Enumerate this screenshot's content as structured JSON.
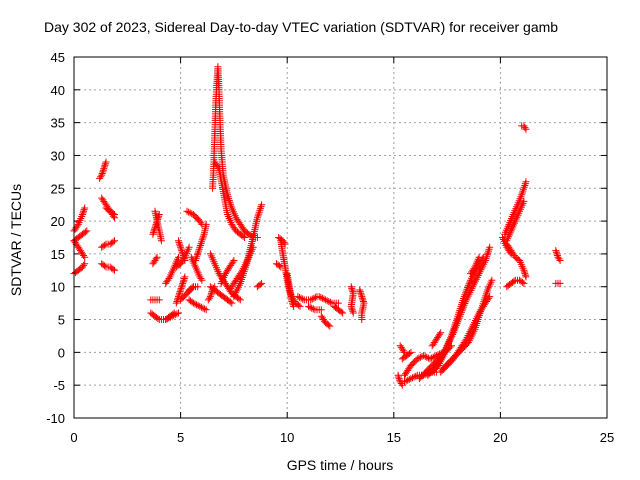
{
  "chart_data": {
    "type": "scatter",
    "title": "Day 302 of 2023, Sidereal Day-to-day VTEC variation (SDTVAR) for receiver gamb",
    "xlabel": "GPS time / hours",
    "ylabel": "SDTVAR / TECUs",
    "xlim": [
      0,
      25
    ],
    "ylim": [
      -10,
      45
    ],
    "xticks": [
      "0",
      "5",
      "10",
      "15",
      "20",
      "25"
    ],
    "yticks": [
      "-10",
      "-5",
      "0",
      "5",
      "10",
      "15",
      "20",
      "25",
      "30",
      "35",
      "40",
      "45"
    ],
    "grid": true,
    "marker": "+",
    "color": "#ff0000",
    "segments": [
      [
        [
          0.0,
          12.0
        ],
        [
          0.2,
          12.5
        ],
        [
          0.4,
          13.0
        ],
        [
          0.5,
          13.5
        ]
      ],
      [
        [
          0.0,
          17.0
        ],
        [
          0.1,
          16.5
        ],
        [
          0.2,
          16.0
        ],
        [
          0.3,
          15.5
        ],
        [
          0.4,
          15.0
        ],
        [
          0.5,
          14.5
        ]
      ],
      [
        [
          0.0,
          18.5
        ],
        [
          0.2,
          19.5
        ],
        [
          0.4,
          21.0
        ],
        [
          0.5,
          22.0
        ]
      ],
      [
        [
          0.0,
          17.0
        ],
        [
          0.2,
          17.5
        ],
        [
          0.4,
          18.0
        ],
        [
          0.6,
          18.5
        ]
      ],
      [
        [
          1.2,
          26.5
        ],
        [
          1.3,
          27.0
        ],
        [
          1.4,
          28.0
        ],
        [
          1.5,
          29.0
        ]
      ],
      [
        [
          1.3,
          23.5
        ],
        [
          1.5,
          22.5
        ],
        [
          1.7,
          21.5
        ],
        [
          1.9,
          20.5
        ]
      ],
      [
        [
          1.3,
          16.0
        ],
        [
          1.5,
          16.5
        ],
        [
          1.7,
          16.5
        ],
        [
          1.9,
          17.0
        ]
      ],
      [
        [
          1.3,
          13.5
        ],
        [
          1.5,
          13.0
        ],
        [
          1.7,
          13.0
        ],
        [
          1.9,
          12.5
        ]
      ],
      [
        [
          1.5,
          22.0
        ],
        [
          1.7,
          21.5
        ],
        [
          1.9,
          21.0
        ]
      ],
      [
        [
          3.7,
          18.0
        ],
        [
          3.8,
          19.0
        ],
        [
          3.9,
          20.0
        ],
        [
          4.0,
          21.0
        ]
      ],
      [
        [
          3.8,
          21.5
        ],
        [
          3.9,
          20.0
        ],
        [
          4.0,
          18.5
        ],
        [
          4.1,
          17.0
        ]
      ],
      [
        [
          3.6,
          8.0
        ],
        [
          3.8,
          8.0
        ],
        [
          4.0,
          8.0
        ]
      ],
      [
        [
          3.6,
          6.0
        ],
        [
          3.8,
          5.5
        ],
        [
          4.0,
          5.0
        ],
        [
          4.3,
          5.0
        ],
        [
          4.6,
          5.5
        ],
        [
          4.9,
          6.0
        ]
      ],
      [
        [
          3.7,
          13.5
        ],
        [
          3.8,
          14.0
        ],
        [
          3.9,
          14.5
        ]
      ],
      [
        [
          4.3,
          10.5
        ],
        [
          4.5,
          11.5
        ],
        [
          4.7,
          13.0
        ],
        [
          4.9,
          14.5
        ]
      ],
      [
        [
          4.3,
          5.0
        ],
        [
          4.5,
          5.5
        ],
        [
          4.7,
          6.0
        ]
      ],
      [
        [
          4.8,
          13.0
        ],
        [
          5.0,
          13.5
        ],
        [
          5.2,
          14.5
        ],
        [
          5.4,
          16.0
        ]
      ],
      [
        [
          4.9,
          17.0
        ],
        [
          5.0,
          16.0
        ],
        [
          5.1,
          15.0
        ],
        [
          5.2,
          14.0
        ]
      ],
      [
        [
          4.8,
          7.5
        ],
        [
          4.9,
          8.5
        ],
        [
          5.0,
          9.5
        ],
        [
          5.1,
          10.5
        ],
        [
          5.2,
          11.5
        ]
      ],
      [
        [
          5.0,
          8.0
        ],
        [
          5.3,
          9.0
        ],
        [
          5.6,
          10.0
        ]
      ],
      [
        [
          5.3,
          21.5
        ],
        [
          5.6,
          21.0
        ],
        [
          5.9,
          20.0
        ],
        [
          6.0,
          19.5
        ]
      ],
      [
        [
          5.5,
          14.5
        ],
        [
          5.7,
          13.0
        ],
        [
          5.9,
          11.5
        ],
        [
          6.0,
          11.0
        ]
      ],
      [
        [
          5.4,
          9.5
        ],
        [
          5.6,
          10.0
        ],
        [
          5.8,
          10.0
        ]
      ],
      [
        [
          5.4,
          8.0
        ],
        [
          5.6,
          7.5
        ],
        [
          5.9,
          7.0
        ],
        [
          6.2,
          6.5
        ]
      ],
      [
        [
          5.7,
          14.0
        ],
        [
          5.9,
          16.0
        ],
        [
          6.1,
          18.0
        ],
        [
          6.2,
          19.5
        ]
      ],
      [
        [
          6.3,
          8.0
        ],
        [
          6.4,
          8.5
        ],
        [
          6.5,
          9.5
        ],
        [
          6.6,
          10.0
        ]
      ],
      [
        [
          6.5,
          25.0
        ],
        [
          6.55,
          28.0
        ],
        [
          6.6,
          33.0
        ],
        [
          6.65,
          38.0
        ],
        [
          6.7,
          41.0
        ],
        [
          6.75,
          43.5
        ],
        [
          6.8,
          40.0
        ],
        [
          6.85,
          35.0
        ],
        [
          6.9,
          31.0
        ],
        [
          6.95,
          29.0
        ],
        [
          7.0,
          27.0
        ],
        [
          7.1,
          25.5
        ],
        [
          7.2,
          24.0
        ],
        [
          7.4,
          22.0
        ],
        [
          7.6,
          20.5
        ],
        [
          7.8,
          19.5
        ],
        [
          8.0,
          18.5
        ],
        [
          8.2,
          18.0
        ],
        [
          8.4,
          17.5
        ],
        [
          8.6,
          17.5
        ]
      ],
      [
        [
          6.6,
          29.0
        ],
        [
          6.8,
          28.0
        ],
        [
          7.0,
          24.5
        ],
        [
          7.2,
          21.0
        ],
        [
          7.4,
          19.5
        ],
        [
          7.6,
          18.5
        ],
        [
          7.8,
          18.0
        ],
        [
          8.0,
          17.5
        ]
      ],
      [
        [
          6.4,
          15.0
        ],
        [
          6.6,
          13.5
        ],
        [
          6.8,
          12.0
        ],
        [
          7.0,
          11.0
        ],
        [
          7.2,
          10.0
        ],
        [
          7.4,
          9.0
        ],
        [
          7.6,
          8.5
        ],
        [
          7.8,
          8.0
        ]
      ],
      [
        [
          6.4,
          10.0
        ],
        [
          6.6,
          9.5
        ],
        [
          6.8,
          9.0
        ],
        [
          7.0,
          8.5
        ],
        [
          7.2,
          8.0
        ],
        [
          7.4,
          7.5
        ]
      ],
      [
        [
          7.3,
          9.5
        ],
        [
          7.6,
          11.0
        ],
        [
          7.9,
          12.5
        ],
        [
          8.2,
          14.5
        ],
        [
          8.4,
          16.0
        ]
      ],
      [
        [
          7.5,
          8.5
        ],
        [
          7.8,
          10.5
        ],
        [
          8.1,
          13.5
        ],
        [
          8.4,
          17.5
        ],
        [
          8.6,
          20.5
        ],
        [
          8.8,
          22.5
        ]
      ],
      [
        [
          6.9,
          10.5
        ],
        [
          7.1,
          12.0
        ],
        [
          7.3,
          13.0
        ],
        [
          7.5,
          14.0
        ]
      ],
      [
        [
          8.6,
          10.0
        ],
        [
          8.8,
          10.5
        ]
      ],
      [
        [
          9.5,
          13.5
        ],
        [
          9.7,
          13.0
        ]
      ],
      [
        [
          9.7,
          17.0
        ],
        [
          9.8,
          15.0
        ],
        [
          9.9,
          13.0
        ],
        [
          10.0,
          11.0
        ],
        [
          10.1,
          9.5
        ],
        [
          10.2,
          8.5
        ],
        [
          10.4,
          7.5
        ],
        [
          10.6,
          7.0
        ]
      ],
      [
        [
          9.6,
          17.5
        ],
        [
          9.8,
          17.0
        ],
        [
          9.9,
          16.5
        ]
      ],
      [
        [
          10.0,
          12.0
        ],
        [
          10.1,
          10.0
        ],
        [
          10.2,
          8.0
        ],
        [
          10.3,
          7.0
        ]
      ],
      [
        [
          10.5,
          8.5
        ],
        [
          10.8,
          8.0
        ],
        [
          11.1,
          8.0
        ],
        [
          11.4,
          8.5
        ]
      ],
      [
        [
          11.0,
          7.0
        ],
        [
          11.3,
          6.5
        ],
        [
          11.6,
          6.5
        ]
      ],
      [
        [
          11.5,
          8.5
        ],
        [
          11.8,
          8.0
        ],
        [
          12.1,
          7.5
        ],
        [
          12.4,
          7.5
        ]
      ],
      [
        [
          11.6,
          5.5
        ],
        [
          11.8,
          4.5
        ],
        [
          12.0,
          4.0
        ]
      ],
      [
        [
          12.2,
          7.0
        ],
        [
          12.4,
          6.5
        ],
        [
          12.6,
          6.0
        ]
      ],
      [
        [
          13.0,
          10.0
        ],
        [
          13.1,
          9.0
        ],
        [
          13.0,
          7.0
        ],
        [
          13.1,
          6.0
        ]
      ],
      [
        [
          13.4,
          9.5
        ],
        [
          13.5,
          8.5
        ],
        [
          13.6,
          7.5
        ],
        [
          13.5,
          6.0
        ],
        [
          13.5,
          5.0
        ]
      ],
      [
        [
          15.2,
          -3.5
        ],
        [
          15.3,
          -4.5
        ],
        [
          15.4,
          -5.0
        ]
      ],
      [
        [
          15.3,
          1.0
        ],
        [
          15.4,
          0.5
        ],
        [
          15.5,
          0.0
        ]
      ],
      [
        [
          15.4,
          -1.0
        ],
        [
          15.6,
          -0.5
        ],
        [
          15.8,
          0.0
        ]
      ],
      [
        [
          15.5,
          -3.5
        ],
        [
          15.8,
          -2.0
        ],
        [
          16.1,
          -1.0
        ],
        [
          16.4,
          -0.5
        ],
        [
          16.7,
          -1.0
        ],
        [
          17.0,
          -0.5
        ],
        [
          17.3,
          0.0
        ]
      ],
      [
        [
          15.5,
          -4.5
        ],
        [
          15.8,
          -4.0
        ],
        [
          16.1,
          -3.5
        ],
        [
          16.4,
          -3.5
        ],
        [
          16.7,
          -3.0
        ],
        [
          17.0,
          -3.0
        ]
      ],
      [
        [
          16.2,
          -4.0
        ],
        [
          16.5,
          -3.0
        ],
        [
          16.8,
          -2.0
        ],
        [
          17.1,
          -1.0
        ],
        [
          17.4,
          0.0
        ],
        [
          17.7,
          1.0
        ]
      ],
      [
        [
          16.6,
          -3.5
        ],
        [
          16.9,
          -2.5
        ],
        [
          17.2,
          -1.0
        ],
        [
          17.5,
          1.0
        ],
        [
          17.8,
          3.0
        ],
        [
          18.1,
          5.5
        ],
        [
          18.4,
          8.0
        ],
        [
          18.7,
          10.0
        ],
        [
          19.0,
          12.0
        ],
        [
          19.3,
          14.0
        ],
        [
          19.5,
          16.0
        ]
      ],
      [
        [
          16.8,
          -3.0
        ],
        [
          17.1,
          -2.0
        ],
        [
          17.4,
          0.0
        ],
        [
          17.7,
          2.5
        ],
        [
          18.0,
          5.5
        ],
        [
          18.3,
          8.5
        ],
        [
          18.6,
          11.0
        ],
        [
          18.9,
          13.0
        ],
        [
          19.2,
          14.5
        ]
      ],
      [
        [
          17.2,
          -3.0
        ],
        [
          17.5,
          -2.0
        ],
        [
          17.8,
          -1.0
        ],
        [
          18.1,
          0.5
        ],
        [
          18.4,
          2.0
        ],
        [
          18.7,
          4.0
        ],
        [
          19.0,
          6.0
        ],
        [
          19.3,
          7.5
        ],
        [
          19.5,
          8.5
        ]
      ],
      [
        [
          17.3,
          -2.5
        ],
        [
          17.6,
          -1.5
        ],
        [
          17.9,
          -0.5
        ],
        [
          18.2,
          0.5
        ],
        [
          18.5,
          1.5
        ],
        [
          18.8,
          3.5
        ],
        [
          19.1,
          6.5
        ],
        [
          19.4,
          9.5
        ],
        [
          19.6,
          11.0
        ]
      ],
      [
        [
          16.8,
          1.0
        ],
        [
          17.0,
          2.0
        ],
        [
          17.2,
          3.0
        ]
      ],
      [
        [
          18.6,
          12.0
        ],
        [
          18.8,
          13.0
        ],
        [
          19.0,
          14.5
        ]
      ],
      [
        [
          20.2,
          18.0
        ],
        [
          20.4,
          19.5
        ],
        [
          20.6,
          21.0
        ],
        [
          20.8,
          22.5
        ],
        [
          21.0,
          24.0
        ],
        [
          21.2,
          26.0
        ]
      ],
      [
        [
          20.3,
          17.0
        ],
        [
          20.5,
          18.5
        ],
        [
          20.7,
          20.0
        ],
        [
          20.9,
          21.5
        ],
        [
          21.1,
          23.0
        ]
      ],
      [
        [
          20.3,
          16.5
        ],
        [
          20.5,
          15.5
        ],
        [
          20.7,
          14.5
        ],
        [
          20.9,
          14.0
        ],
        [
          21.1,
          12.5
        ],
        [
          21.2,
          11.5
        ]
      ],
      [
        [
          20.1,
          17.5
        ],
        [
          20.3,
          16.0
        ],
        [
          20.5,
          15.0
        ]
      ],
      [
        [
          20.3,
          10.0
        ],
        [
          20.5,
          10.5
        ],
        [
          20.7,
          11.0
        ],
        [
          20.9,
          11.0
        ],
        [
          21.1,
          10.5
        ]
      ],
      [
        [
          21.0,
          34.5
        ],
        [
          21.1,
          34.5
        ],
        [
          21.2,
          34.0
        ]
      ],
      [
        [
          22.6,
          15.5
        ],
        [
          22.7,
          14.5
        ],
        [
          22.8,
          14.0
        ]
      ],
      [
        [
          22.6,
          10.5
        ],
        [
          22.8,
          10.5
        ]
      ]
    ]
  }
}
